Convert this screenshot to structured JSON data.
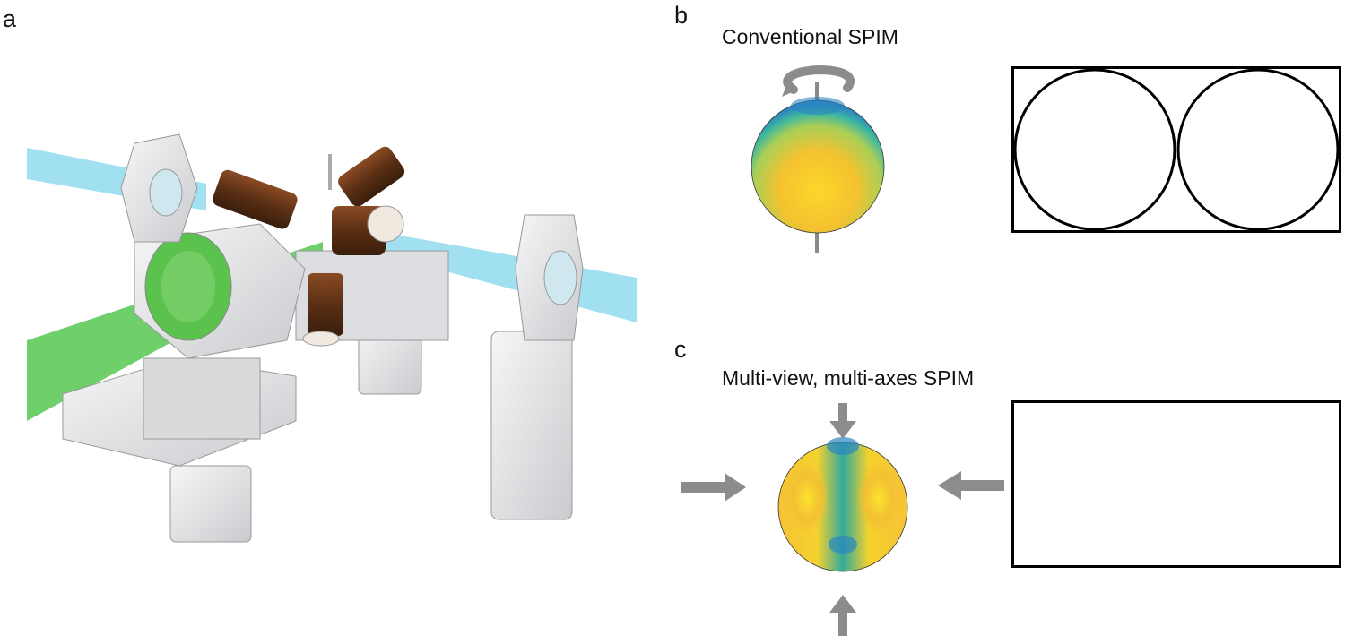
{
  "panels": {
    "a": {
      "label": "a"
    },
    "b": {
      "label": "b",
      "title": "Conventional SPIM"
    },
    "c": {
      "label": "c",
      "title": "Multi-view, multi-axes SPIM"
    }
  },
  "colors": {
    "beam_green": "#3fbf3a",
    "beam_cyan": "#7fd6ec",
    "metal": "#e6e7e9",
    "coil": "#6b3a1f",
    "arrow_gray": "#8c8c8c",
    "heat_high": "#f5d62a",
    "heat_mid": "#8fd06a",
    "heat_low": "#2a7fbf"
  },
  "icons": {
    "rotation": "rotation-arrow-icon",
    "illumination": "arrow-icon"
  }
}
